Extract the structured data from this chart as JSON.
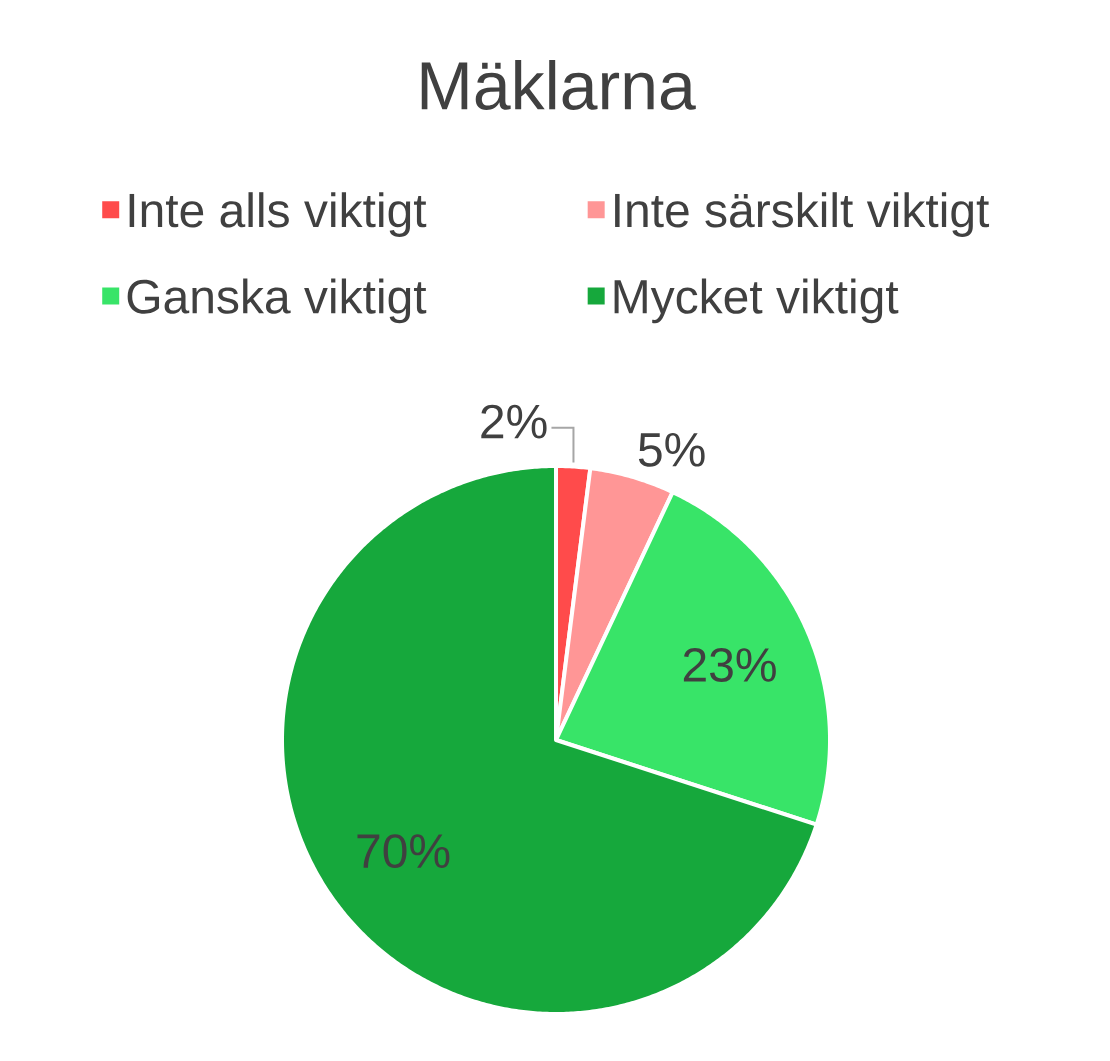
{
  "chart_data": {
    "type": "pie",
    "title": "Mäklarna",
    "categories": [
      "Inte alls viktigt",
      "Inte särskilt viktigt",
      "Ganska viktigt",
      "Mycket viktigt"
    ],
    "values": [
      2,
      5,
      23,
      70
    ],
    "colors": [
      "#ff4b4b",
      "#ff9696",
      "#38e468",
      "#16a83c"
    ],
    "value_labels": [
      "2%",
      "5%",
      "23%",
      "70%"
    ],
    "legend": "top"
  }
}
